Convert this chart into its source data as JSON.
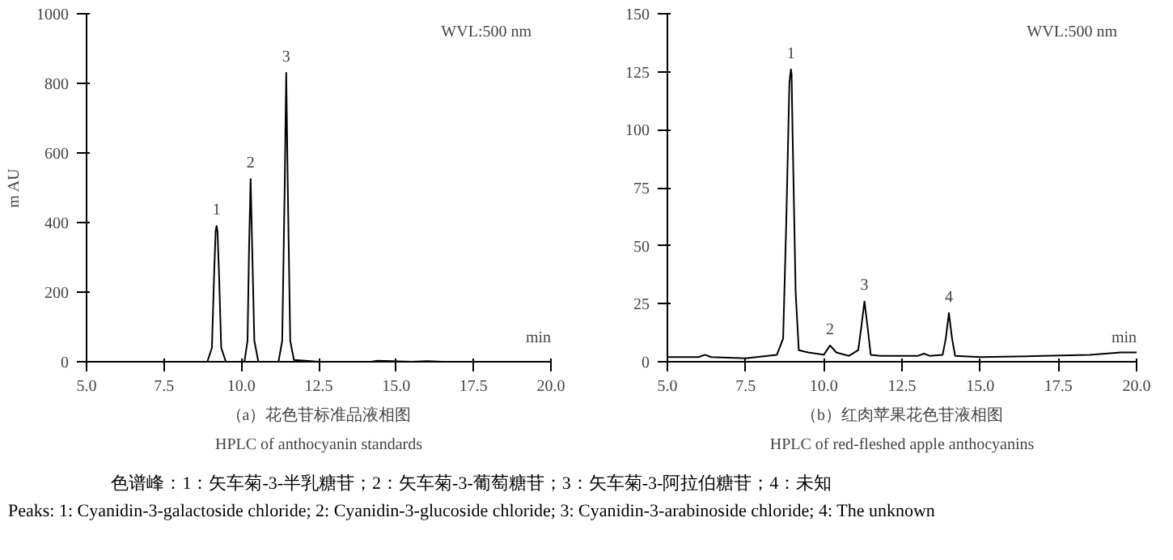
{
  "chart_data": [
    {
      "type": "line",
      "title": "（a）花色苷标准品液相图",
      "subtitle": "HPLC of anthocyanin standards",
      "xlabel": "min",
      "ylabel": "m AU",
      "x": [
        5,
        8.9,
        9.05,
        9.12,
        9.17,
        9.2,
        9.23,
        9.28,
        9.35,
        9.5,
        10.1,
        10.2,
        10.25,
        10.3,
        10.35,
        10.42,
        10.55,
        11.2,
        11.32,
        11.4,
        11.45,
        11.5,
        11.58,
        11.7,
        12.5,
        14.2,
        14.4,
        15.5,
        16,
        16.5,
        20
      ],
      "series": [
        {
          "color": "#000000",
          "values": [
            0,
            0,
            40,
            250,
            375,
            390,
            375,
            250,
            40,
            0,
            0,
            60,
            330,
            525,
            330,
            60,
            0,
            0,
            60,
            500,
            830,
            500,
            60,
            5,
            0,
            0,
            3,
            0,
            2,
            0,
            0
          ]
        }
      ],
      "xlim": [
        5,
        20
      ],
      "xticks": [
        {
          "value": 5,
          "label": "5.0"
        },
        7.5,
        {
          "value": 10,
          "label": "10.0"
        },
        12.5,
        {
          "value": 15,
          "label": "15.0"
        },
        17.5,
        {
          "value": 20,
          "label": "20.0"
        }
      ],
      "ylim": [
        0,
        1000
      ],
      "yticks": [
        0,
        200,
        400,
        600,
        800,
        1000
      ],
      "grid": false,
      "marker": "none",
      "line_style": "solid",
      "annotations": [
        "WVL:500 nm",
        {
          "text": "1",
          "x": 9.2,
          "y": 390
        },
        {
          "text": "2",
          "x": 10.3,
          "y": 525
        },
        {
          "text": "3",
          "x": 11.45,
          "y": 830
        }
      ]
    },
    {
      "type": "line",
      "title": "（b）红肉苹果花色苷液相图",
      "subtitle": "HPLC of red-fleshed apple anthocyanins",
      "xlabel": "min",
      "x": [
        5,
        6.0,
        6.2,
        6.4,
        7.5,
        8.5,
        8.7,
        8.8,
        8.9,
        8.93,
        8.95,
        8.97,
        9.0,
        9.1,
        9.2,
        9.5,
        10.0,
        10.2,
        10.4,
        10.8,
        11.1,
        11.2,
        11.3,
        11.4,
        11.5,
        11.8,
        13.0,
        13.2,
        13.4,
        13.8,
        13.9,
        14.0,
        14.1,
        14.2,
        15,
        17,
        18.5,
        19.5,
        20
      ],
      "series": [
        {
          "color": "#000000",
          "values": [
            2,
            2,
            3,
            2,
            1.5,
            3,
            10,
            60,
            120,
            124,
            126,
            124,
            100,
            30,
            5,
            4,
            3,
            7,
            4,
            2.5,
            5,
            15,
            26,
            15,
            3,
            2.5,
            2.5,
            3.5,
            2.5,
            3,
            10,
            21,
            10,
            2.5,
            2,
            2.5,
            3,
            4,
            4
          ]
        }
      ],
      "xlim": [
        5,
        20
      ],
      "xticks": [
        {
          "value": 5,
          "label": "5.0"
        },
        7.5,
        {
          "value": 10,
          "label": "10.0"
        },
        12.5,
        {
          "value": 15,
          "label": "15.0"
        },
        17.5,
        {
          "value": 20,
          "label": "20.0"
        }
      ],
      "ylim": [
        0,
        150
      ],
      "yticks": [
        0,
        25,
        50,
        75,
        100,
        125,
        150
      ],
      "grid": false,
      "marker": "none",
      "line_style": "solid",
      "annotations": [
        "WVL:500 nm",
        {
          "text": "1",
          "x": 8.95,
          "y": 126
        },
        {
          "text": "2",
          "x": 10.2,
          "y": 7
        },
        {
          "text": "3",
          "x": 11.3,
          "y": 26
        },
        {
          "text": "4",
          "x": 14.0,
          "y": 21
        },
        "色谱峰：1：矢车菊-3-半乳糖苷；2：矢车菊-3-葡萄糖苷；3：矢车菊-3-阿拉伯糖苷；4：未知",
        "Peaks: 1: Cyanidin-3-galactoside chloride; 2: Cyanidin-3-glucoside chloride; 3: Cyanidin-3-arabinoside chloride; 4: The unknown"
      ]
    }
  ]
}
